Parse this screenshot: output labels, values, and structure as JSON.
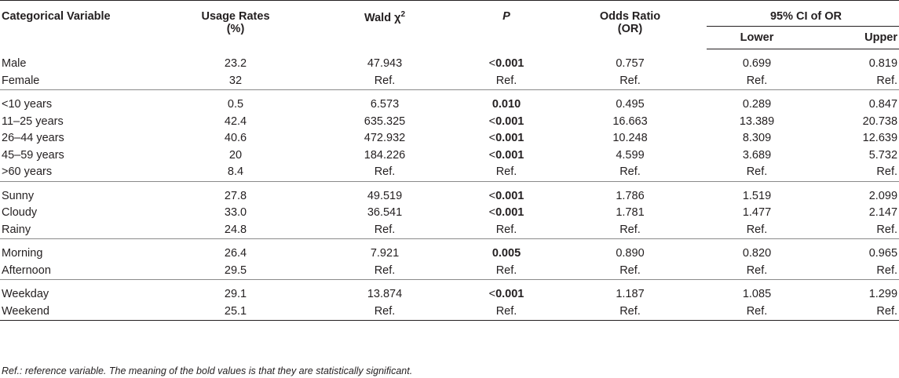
{
  "headers": {
    "col0": "Categorical Variable",
    "col1_line1": "Usage Rates",
    "col1_line2": "(%)",
    "col2": "Wald χ",
    "col2_sup": "2",
    "col3": "P",
    "col4_line1": "Odds Ratio",
    "col4_line2": "(OR)",
    "ci_group": "95% CI of OR",
    "ci_lower": "Lower",
    "ci_upper": "Upper"
  },
  "groups": [
    {
      "rows": [
        {
          "label": "Male",
          "rate": "23.2",
          "wald": "47.943",
          "p_prefix": "<",
          "p_value": "0.001",
          "or": "0.757",
          "lower": "0.699",
          "upper": "0.819"
        },
        {
          "label": "Female",
          "rate": "32",
          "wald": "Ref.",
          "p_prefix": "",
          "p_value": "Ref.",
          "or": "Ref.",
          "lower": "Ref.",
          "upper": "Ref."
        }
      ]
    },
    {
      "rows": [
        {
          "label": "<10 years",
          "rate": "0.5",
          "wald": "6.573",
          "p_prefix": "",
          "p_value": "0.010",
          "or": "0.495",
          "lower": "0.289",
          "upper": "0.847"
        },
        {
          "label": "11–25 years",
          "rate": "42.4",
          "wald": "635.325",
          "p_prefix": "<",
          "p_value": "0.001",
          "or": "16.663",
          "lower": "13.389",
          "upper": "20.738"
        },
        {
          "label": "26–44 years",
          "rate": "40.6",
          "wald": "472.932",
          "p_prefix": "<",
          "p_value": "0.001",
          "or": "10.248",
          "lower": "8.309",
          "upper": "12.639"
        },
        {
          "label": "45–59 years",
          "rate": "20",
          "wald": "184.226",
          "p_prefix": "<",
          "p_value": "0.001",
          "or": "4.599",
          "lower": "3.689",
          "upper": "5.732"
        },
        {
          "label": ">60 years",
          "rate": "8.4",
          "wald": "Ref.",
          "p_prefix": "",
          "p_value": "Ref.",
          "or": "Ref.",
          "lower": "Ref.",
          "upper": "Ref."
        }
      ]
    },
    {
      "rows": [
        {
          "label": "Sunny",
          "rate": "27.8",
          "wald": "49.519",
          "p_prefix": "<",
          "p_value": "0.001",
          "or": "1.786",
          "lower": "1.519",
          "upper": "2.099"
        },
        {
          "label": "Cloudy",
          "rate": "33.0",
          "wald": "36.541",
          "p_prefix": "<",
          "p_value": "0.001",
          "or": "1.781",
          "lower": "1.477",
          "upper": "2.147"
        },
        {
          "label": "Rainy",
          "rate": "24.8",
          "wald": "Ref.",
          "p_prefix": "",
          "p_value": "Ref.",
          "or": "Ref.",
          "lower": "Ref.",
          "upper": "Ref."
        }
      ]
    },
    {
      "rows": [
        {
          "label": "Morning",
          "rate": "26.4",
          "wald": "7.921",
          "p_prefix": "",
          "p_value": "0.005",
          "or": "0.890",
          "lower": "0.820",
          "upper": "0.965"
        },
        {
          "label": "Afternoon",
          "rate": "29.5",
          "wald": "Ref.",
          "p_prefix": "",
          "p_value": "Ref.",
          "or": "Ref.",
          "lower": "Ref.",
          "upper": "Ref."
        }
      ]
    },
    {
      "rows": [
        {
          "label": "Weekday",
          "rate": "29.1",
          "wald": "13.874",
          "p_prefix": "<",
          "p_value": "0.001",
          "or": "1.187",
          "lower": "1.085",
          "upper": "1.299"
        },
        {
          "label": "Weekend",
          "rate": "25.1",
          "wald": "Ref.",
          "p_prefix": "",
          "p_value": "Ref.",
          "or": "Ref.",
          "lower": "Ref.",
          "upper": "Ref."
        }
      ]
    }
  ],
  "footnote": "Ref.: reference variable. The meaning of the bold values is that they are statistically significant."
}
